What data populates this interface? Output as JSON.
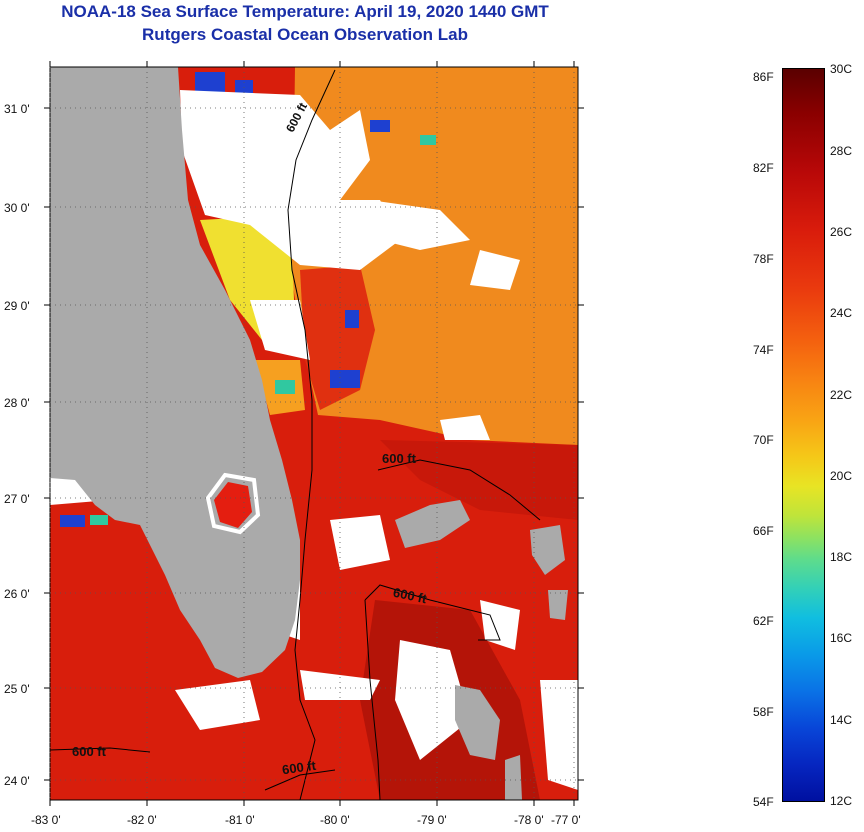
{
  "title": {
    "line1": "NOAA-18 Sea Surface Temperature:  April 19, 2020 1440 GMT",
    "line2": "Rutgers Coastal Ocean Observation Lab"
  },
  "map": {
    "lat_ticks": [
      "31 0'",
      "30 0'",
      "29 0'",
      "28 0'",
      "27 0'",
      "26 0'",
      "25 0'",
      "24 0'"
    ],
    "lon_ticks": [
      "-83 0'",
      "-82 0'",
      "-81 0'",
      "-80 0'",
      "-79 0'",
      "-78 0'",
      "-77 0'"
    ],
    "isobath_labels": [
      "600 ft",
      "600 ft",
      "600 ft",
      "600 ft",
      "600 ft"
    ],
    "colors": {
      "land": "#aaaaaa",
      "cloud": "#ffffff",
      "warm_sea": "#d81e0c",
      "mid_sea": "#f08a1e",
      "cool_sea": "#f0e030",
      "cold_sea": "#1e40d0"
    }
  },
  "colorbar": {
    "fahrenheit": [
      "86F",
      "82F",
      "78F",
      "74F",
      "70F",
      "66F",
      "62F",
      "58F",
      "54F"
    ],
    "celsius": [
      "30C",
      "28C",
      "26C",
      "24C",
      "22C",
      "20C",
      "18C",
      "16C",
      "14C",
      "12C"
    ]
  }
}
